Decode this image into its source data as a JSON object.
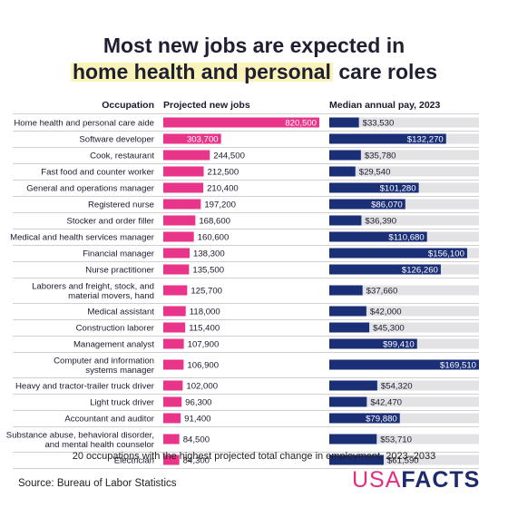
{
  "title": {
    "line1": "Most new jobs are expected in",
    "line2_highlight": "home health and personal",
    "line2_rest": " care roles"
  },
  "footnote": "20 occupations with the highest projected total change in employment, 2023–2033",
  "source": "Source: Bureau of Labor Statistics",
  "logo": {
    "part1": "USA",
    "part2": "FACTS"
  },
  "colors": {
    "jobs_bar": "#e8358a",
    "pay_bar": "#1b2f77",
    "pay_track": "#e3e3e6",
    "row_divider": "#cfcfd4"
  },
  "chart_data": {
    "type": "bar",
    "headers": {
      "occupation": "Occupation",
      "jobs": "Projected new jobs",
      "pay": "Median annual pay, 2023"
    },
    "jobs_max": 820500,
    "pay_max": 169510,
    "rows": [
      {
        "occupation": [
          "Home health and personal care aide"
        ],
        "jobs": 820500,
        "jobs_label": "820,500",
        "pay": 33530,
        "pay_label": "$33,530"
      },
      {
        "occupation": [
          "Software developer"
        ],
        "jobs": 303700,
        "jobs_label": "303,700",
        "pay": 132270,
        "pay_label": "$132,270"
      },
      {
        "occupation": [
          "Cook, restaurant"
        ],
        "jobs": 244500,
        "jobs_label": "244,500",
        "pay": 35780,
        "pay_label": "$35,780"
      },
      {
        "occupation": [
          "Fast food and counter worker"
        ],
        "jobs": 212500,
        "jobs_label": "212,500",
        "pay": 29540,
        "pay_label": "$29,540"
      },
      {
        "occupation": [
          "General and operations manager"
        ],
        "jobs": 210400,
        "jobs_label": "210,400",
        "pay": 101280,
        "pay_label": "$101,280"
      },
      {
        "occupation": [
          "Registered nurse"
        ],
        "jobs": 197200,
        "jobs_label": "197,200",
        "pay": 86070,
        "pay_label": "$86,070"
      },
      {
        "occupation": [
          "Stocker and order filler"
        ],
        "jobs": 168600,
        "jobs_label": "168,600",
        "pay": 36390,
        "pay_label": "$36,390"
      },
      {
        "occupation": [
          "Medical and health services manager"
        ],
        "jobs": 160600,
        "jobs_label": "160,600",
        "pay": 110680,
        "pay_label": "$110,680"
      },
      {
        "occupation": [
          "Financial manager"
        ],
        "jobs": 138300,
        "jobs_label": "138,300",
        "pay": 156100,
        "pay_label": "$156,100"
      },
      {
        "occupation": [
          "Nurse practitioner"
        ],
        "jobs": 135500,
        "jobs_label": "135,500",
        "pay": 126260,
        "pay_label": "$126,260"
      },
      {
        "occupation": [
          "Laborers and freight, stock, and",
          "material movers, hand"
        ],
        "jobs": 125700,
        "jobs_label": "125,700",
        "pay": 37660,
        "pay_label": "$37,660"
      },
      {
        "occupation": [
          "Medical assistant"
        ],
        "jobs": 118000,
        "jobs_label": "118,000",
        "pay": 42000,
        "pay_label": "$42,000"
      },
      {
        "occupation": [
          "Construction laborer"
        ],
        "jobs": 115400,
        "jobs_label": "115,400",
        "pay": 45300,
        "pay_label": "$45,300"
      },
      {
        "occupation": [
          "Management analyst"
        ],
        "jobs": 107900,
        "jobs_label": "107,900",
        "pay": 99410,
        "pay_label": "$99,410"
      },
      {
        "occupation": [
          "Computer and information",
          "systems manager"
        ],
        "jobs": 106900,
        "jobs_label": "106,900",
        "pay": 169510,
        "pay_label": "$169,510"
      },
      {
        "occupation": [
          "Heavy and tractor-trailer truck driver"
        ],
        "jobs": 102000,
        "jobs_label": "102,000",
        "pay": 54320,
        "pay_label": "$54,320"
      },
      {
        "occupation": [
          "Light truck driver"
        ],
        "jobs": 96300,
        "jobs_label": "96,300",
        "pay": 42470,
        "pay_label": "$42,470"
      },
      {
        "occupation": [
          "Accountant and auditor"
        ],
        "jobs": 91400,
        "jobs_label": "91,400",
        "pay": 79880,
        "pay_label": "$79,880"
      },
      {
        "occupation": [
          "Substance abuse, behavioral disorder,",
          "and mental health counselor"
        ],
        "jobs": 84500,
        "jobs_label": "84,500",
        "pay": 53710,
        "pay_label": "$53,710"
      },
      {
        "occupation": [
          "Electrician"
        ],
        "jobs": 84300,
        "jobs_label": "84,300",
        "pay": 61590,
        "pay_label": "$61,590"
      }
    ]
  }
}
